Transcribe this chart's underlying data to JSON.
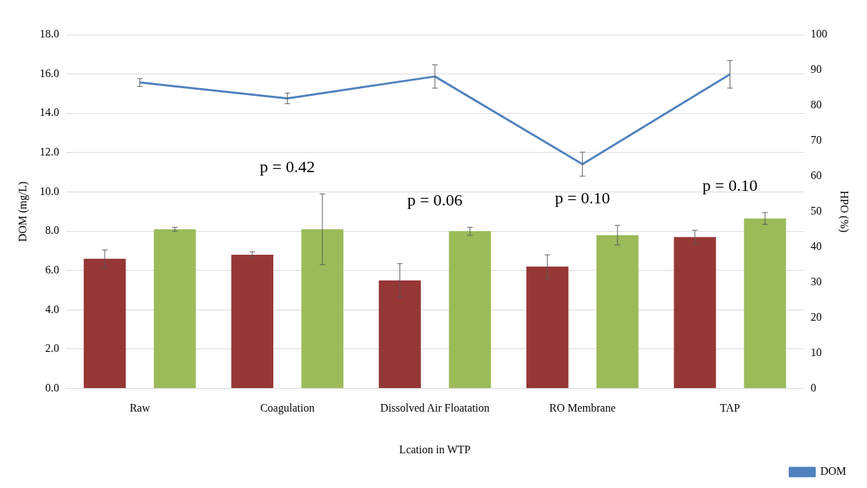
{
  "chart_data": {
    "type": "bar",
    "xlabel": "Lcation in WTP",
    "ylabel": "DOM (mg/L)",
    "y2label": "HPO (%)",
    "categories": [
      "Raw",
      "Coagulation",
      "Dissolved Air Floatation",
      "RO Membrane",
      "TAP"
    ],
    "series": [
      {
        "color": "#953735",
        "values": [
          6.6,
          6.8,
          5.5,
          6.2,
          7.7
        ],
        "errors": [
          0.45,
          0.15,
          0.85,
          0.6,
          0.35
        ]
      },
      {
        "color": "#9bbb59",
        "values": [
          8.1,
          8.1,
          8.0,
          7.8,
          8.65
        ],
        "errors": [
          0.1,
          1.8,
          0.2,
          0.5,
          0.3
        ]
      },
      {
        "name": "DOM",
        "type": "line",
        "axis": "y2",
        "color": "#4f81bd",
        "values": [
          86.5,
          82,
          88.2,
          63.4,
          88.8
        ],
        "errors": [
          1.1,
          1.5,
          3.3,
          3.4,
          3.9
        ]
      }
    ],
    "ylim": [
      0,
      18
    ],
    "yticks": [
      {
        "value": 0,
        "label": "0.0"
      },
      {
        "value": 2,
        "label": "2.0"
      },
      {
        "value": 4,
        "label": "4.0"
      },
      {
        "value": 6,
        "label": "6.0"
      },
      {
        "value": 8,
        "label": "8.0"
      },
      {
        "value": 10,
        "label": "10.0"
      },
      {
        "value": 12,
        "label": "12.0"
      },
      {
        "value": 14,
        "label": "14.0"
      },
      {
        "value": 16,
        "label": "16.0"
      },
      {
        "value": 18,
        "label": "18.0"
      }
    ],
    "y2lim": [
      0,
      100
    ],
    "y2ticks": [
      0,
      10,
      20,
      30,
      40,
      50,
      60,
      70,
      80,
      90,
      100
    ],
    "annotations": [
      "p = 0.42",
      "p = 0.06",
      "p = 0.10",
      "p = 0.10"
    ],
    "grid": "y",
    "legend": "bottom right",
    "marker": "none",
    "line_style": "solid"
  }
}
